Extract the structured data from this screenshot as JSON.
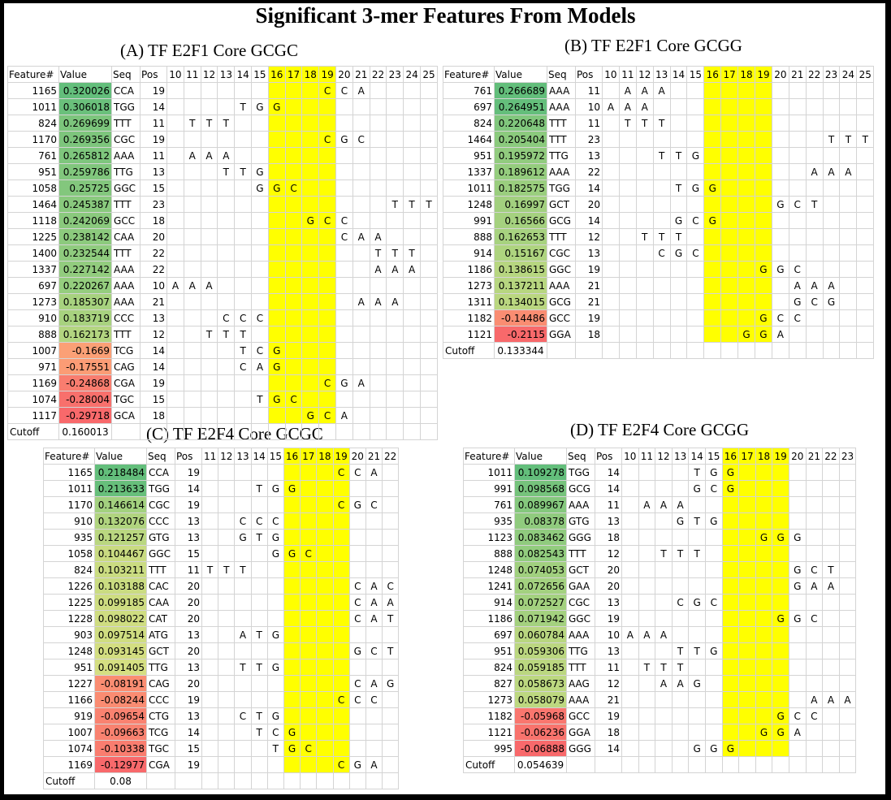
{
  "title": "Significant 3-mer Features From Models",
  "colors": {
    "yellow": "#ffff00",
    "high": "#63be7b",
    "mid": "#ffeb84",
    "low": "#f8696b"
  },
  "panels": [
    {
      "id": "A",
      "title": "(A) TF E2F1 Core GCGC",
      "positions": [
        10,
        11,
        12,
        13,
        14,
        15,
        16,
        17,
        18,
        19,
        20,
        21,
        22,
        23,
        24,
        25
      ],
      "core": [
        16,
        17,
        18,
        19
      ],
      "headers": {
        "feature": "Feature#",
        "value": "Value",
        "seq": "Seq",
        "pos": "Pos"
      },
      "rows": [
        {
          "feature": "1165",
          "value": "0.320026",
          "seq": "CCA",
          "pos": "19"
        },
        {
          "feature": "1011",
          "value": "0.306018",
          "seq": "TGG",
          "pos": "14"
        },
        {
          "feature": "824",
          "value": "0.269699",
          "seq": "TTT",
          "pos": "11"
        },
        {
          "feature": "1170",
          "value": "0.269356",
          "seq": "CGC",
          "pos": "19"
        },
        {
          "feature": "761",
          "value": "0.265812",
          "seq": "AAA",
          "pos": "11"
        },
        {
          "feature": "951",
          "value": "0.259786",
          "seq": "TTG",
          "pos": "13"
        },
        {
          "feature": "1058",
          "value": "0.25725",
          "seq": "GGC",
          "pos": "15"
        },
        {
          "feature": "1464",
          "value": "0.245387",
          "seq": "TTT",
          "pos": "23"
        },
        {
          "feature": "1118",
          "value": "0.242069",
          "seq": "GCC",
          "pos": "18"
        },
        {
          "feature": "1225",
          "value": "0.238142",
          "seq": "CAA",
          "pos": "20"
        },
        {
          "feature": "1400",
          "value": "0.232544",
          "seq": "TTT",
          "pos": "22"
        },
        {
          "feature": "1337",
          "value": "0.227142",
          "seq": "AAA",
          "pos": "22"
        },
        {
          "feature": "697",
          "value": "0.220267",
          "seq": "AAA",
          "pos": "10"
        },
        {
          "feature": "1273",
          "value": "0.185307",
          "seq": "AAA",
          "pos": "21"
        },
        {
          "feature": "910",
          "value": "0.183719",
          "seq": "CCC",
          "pos": "13"
        },
        {
          "feature": "888",
          "value": "0.162173",
          "seq": "TTT",
          "pos": "12"
        },
        {
          "feature": "1007",
          "value": "-0.1669",
          "seq": "TCG",
          "pos": "14"
        },
        {
          "feature": "971",
          "value": "-0.17551",
          "seq": "CAG",
          "pos": "14"
        },
        {
          "feature": "1169",
          "value": "-0.24868",
          "seq": "CGA",
          "pos": "19"
        },
        {
          "feature": "1074",
          "value": "-0.28004",
          "seq": "TGC",
          "pos": "15"
        },
        {
          "feature": "1117",
          "value": "-0.29718",
          "seq": "GCA",
          "pos": "18"
        }
      ],
      "cutoff_label": "Cutoff",
      "cutoff": "0.160013"
    },
    {
      "id": "B",
      "title": "(B) TF E2F1 Core GCGG",
      "positions": [
        10,
        11,
        12,
        13,
        14,
        15,
        16,
        17,
        18,
        19,
        20,
        21,
        22,
        23,
        24,
        25
      ],
      "core": [
        16,
        17,
        18,
        19
      ],
      "headers": {
        "feature": "Feature#",
        "value": "Value",
        "seq": "Seq",
        "pos": "Pos"
      },
      "rows": [
        {
          "feature": "761",
          "value": "0.266689",
          "seq": "AAA",
          "pos": "11"
        },
        {
          "feature": "697",
          "value": "0.264951",
          "seq": "AAA",
          "pos": "10"
        },
        {
          "feature": "824",
          "value": "0.220648",
          "seq": "TTT",
          "pos": "11"
        },
        {
          "feature": "1464",
          "value": "0.205404",
          "seq": "TTT",
          "pos": "23"
        },
        {
          "feature": "951",
          "value": "0.195972",
          "seq": "TTG",
          "pos": "13"
        },
        {
          "feature": "1337",
          "value": "0.189612",
          "seq": "AAA",
          "pos": "22"
        },
        {
          "feature": "1011",
          "value": "0.182575",
          "seq": "TGG",
          "pos": "14"
        },
        {
          "feature": "1248",
          "value": "0.16997",
          "seq": "GCT",
          "pos": "20"
        },
        {
          "feature": "991",
          "value": "0.16566",
          "seq": "GCG",
          "pos": "14"
        },
        {
          "feature": "888",
          "value": "0.162653",
          "seq": "TTT",
          "pos": "12"
        },
        {
          "feature": "914",
          "value": "0.15167",
          "seq": "CGC",
          "pos": "13"
        },
        {
          "feature": "1186",
          "value": "0.138615",
          "seq": "GGC",
          "pos": "19"
        },
        {
          "feature": "1273",
          "value": "0.137211",
          "seq": "AAA",
          "pos": "21"
        },
        {
          "feature": "1311",
          "value": "0.134015",
          "seq": "GCG",
          "pos": "21"
        },
        {
          "feature": "1182",
          "value": "-0.14486",
          "seq": "GCC",
          "pos": "19"
        },
        {
          "feature": "1121",
          "value": "-0.2115",
          "seq": "GGA",
          "pos": "18"
        }
      ],
      "cutoff_label": "Cutoff",
      "cutoff": "0.133344"
    },
    {
      "id": "C",
      "title": "(C) TF E2F4 Core GCGC",
      "positions": [
        11,
        12,
        13,
        14,
        15,
        16,
        17,
        18,
        19,
        20,
        21,
        22
      ],
      "core": [
        16,
        17,
        18,
        19
      ],
      "headers": {
        "feature": "Feature#",
        "value": "Value",
        "seq": "Seq",
        "pos": "Pos"
      },
      "rows": [
        {
          "feature": "1165",
          "value": "0.218484",
          "seq": "CCA",
          "pos": "19"
        },
        {
          "feature": "1011",
          "value": "0.213633",
          "seq": "TGG",
          "pos": "14"
        },
        {
          "feature": "1170",
          "value": "0.146614",
          "seq": "CGC",
          "pos": "19"
        },
        {
          "feature": "910",
          "value": "0.132076",
          "seq": "CCC",
          "pos": "13"
        },
        {
          "feature": "935",
          "value": "0.121257",
          "seq": "GTG",
          "pos": "13"
        },
        {
          "feature": "1058",
          "value": "0.104467",
          "seq": "GGC",
          "pos": "15"
        },
        {
          "feature": "824",
          "value": "0.103211",
          "seq": "TTT",
          "pos": "11"
        },
        {
          "feature": "1226",
          "value": "0.103188",
          "seq": "CAC",
          "pos": "20"
        },
        {
          "feature": "1225",
          "value": "0.099185",
          "seq": "CAA",
          "pos": "20"
        },
        {
          "feature": "1228",
          "value": "0.098022",
          "seq": "CAT",
          "pos": "20"
        },
        {
          "feature": "903",
          "value": "0.097514",
          "seq": "ATG",
          "pos": "13"
        },
        {
          "feature": "1248",
          "value": "0.093145",
          "seq": "GCT",
          "pos": "20"
        },
        {
          "feature": "951",
          "value": "0.091405",
          "seq": "TTG",
          "pos": "13"
        },
        {
          "feature": "1227",
          "value": "-0.08191",
          "seq": "CAG",
          "pos": "20"
        },
        {
          "feature": "1166",
          "value": "-0.08244",
          "seq": "CCC",
          "pos": "19"
        },
        {
          "feature": "919",
          "value": "-0.09654",
          "seq": "CTG",
          "pos": "13"
        },
        {
          "feature": "1007",
          "value": "-0.09663",
          "seq": "TCG",
          "pos": "14"
        },
        {
          "feature": "1074",
          "value": "-0.10338",
          "seq": "TGC",
          "pos": "15"
        },
        {
          "feature": "1169",
          "value": "-0.12977",
          "seq": "CGA",
          "pos": "19"
        }
      ],
      "cutoff_label": "Cutoff",
      "cutoff": "0.08"
    },
    {
      "id": "D",
      "title": "(D) TF E2F4 Core GCGG",
      "positions": [
        10,
        11,
        12,
        13,
        14,
        15,
        16,
        17,
        18,
        19,
        20,
        21,
        22,
        23
      ],
      "core": [
        16,
        17,
        18,
        19
      ],
      "headers": {
        "feature": "Feature#",
        "value": "Value",
        "seq": "Seq",
        "pos": "Pos"
      },
      "rows": [
        {
          "feature": "1011",
          "value": "0.109278",
          "seq": "TGG",
          "pos": "14"
        },
        {
          "feature": "991",
          "value": "0.098568",
          "seq": "GCG",
          "pos": "14"
        },
        {
          "feature": "761",
          "value": "0.089967",
          "seq": "AAA",
          "pos": "11"
        },
        {
          "feature": "935",
          "value": "0.08378",
          "seq": "GTG",
          "pos": "13"
        },
        {
          "feature": "1123",
          "value": "0.083462",
          "seq": "GGG",
          "pos": "18"
        },
        {
          "feature": "888",
          "value": "0.082543",
          "seq": "TTT",
          "pos": "12"
        },
        {
          "feature": "1248",
          "value": "0.074053",
          "seq": "GCT",
          "pos": "20"
        },
        {
          "feature": "1241",
          "value": "0.072656",
          "seq": "GAA",
          "pos": "20"
        },
        {
          "feature": "914",
          "value": "0.072527",
          "seq": "CGC",
          "pos": "13"
        },
        {
          "feature": "1186",
          "value": "0.071942",
          "seq": "GGC",
          "pos": "19"
        },
        {
          "feature": "697",
          "value": "0.060784",
          "seq": "AAA",
          "pos": "10"
        },
        {
          "feature": "951",
          "value": "0.059306",
          "seq": "TTG",
          "pos": "13"
        },
        {
          "feature": "824",
          "value": "0.059185",
          "seq": "TTT",
          "pos": "11"
        },
        {
          "feature": "827",
          "value": "0.058673",
          "seq": "AAG",
          "pos": "12"
        },
        {
          "feature": "1273",
          "value": "0.058079",
          "seq": "AAA",
          "pos": "21"
        },
        {
          "feature": "1182",
          "value": "-0.05968",
          "seq": "GCC",
          "pos": "19"
        },
        {
          "feature": "1121",
          "value": "-0.06236",
          "seq": "GGA",
          "pos": "18"
        },
        {
          "feature": "995",
          "value": "-0.06888",
          "seq": "GGG",
          "pos": "14"
        }
      ],
      "cutoff_label": "Cutoff",
      "cutoff": "0.054639"
    }
  ]
}
